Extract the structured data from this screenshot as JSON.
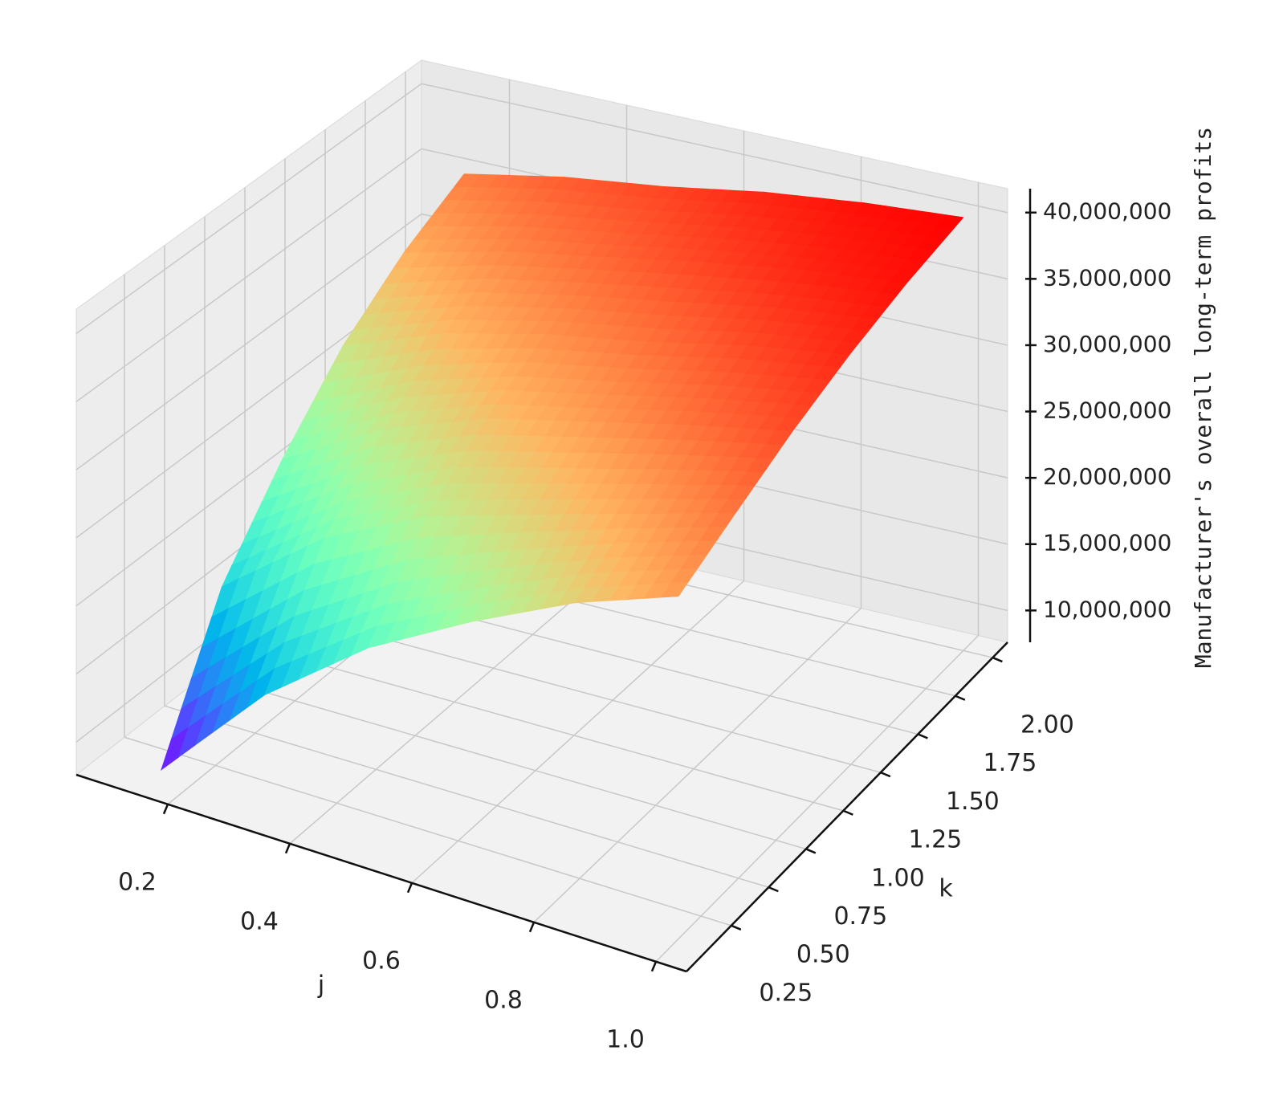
{
  "chart_data": {
    "type": "surface",
    "xlabel": "j",
    "ylabel": "k",
    "zlabel": "Manufacturer's overall long-term profits",
    "colormap": "rainbow",
    "grid": true,
    "x": [
      0.15,
      0.32,
      0.49,
      0.66,
      0.83,
      1.0
    ],
    "y": [
      0.1,
      0.48,
      0.86,
      1.24,
      1.62,
      2.0
    ],
    "z": [
      [
        8000000,
        18000000,
        24000000,
        29000000,
        32500000,
        35000000
      ],
      [
        16000000,
        24000000,
        28500000,
        32000000,
        34500000,
        36500000
      ],
      [
        22000000,
        28000000,
        31500000,
        34000000,
        36000000,
        37500000
      ],
      [
        26500000,
        30500000,
        33500000,
        35500000,
        37500000,
        38800000
      ],
      [
        30500000,
        33000000,
        35500000,
        37300000,
        38800000,
        39700000
      ],
      [
        33600000,
        35500000,
        37300000,
        38700000,
        39700000,
        40300000
      ]
    ],
    "xlim": [
      0.05,
      1.05
    ],
    "ylim": [
      -0.05,
      2.1
    ],
    "zlim": [
      7600000,
      41800000
    ],
    "xticks": [
      0.2,
      0.4,
      0.6,
      0.8,
      {
        "value": 1,
        "label": "1.0"
      }
    ],
    "yticks": [
      0.25,
      {
        "value": 0.5,
        "label": "0.50"
      },
      0.75,
      {
        "value": 1,
        "label": "1.00"
      },
      1.25,
      {
        "value": 1.5,
        "label": "1.50"
      },
      1.75,
      {
        "value": 2,
        "label": "2.00"
      }
    ],
    "zticks": [
      {
        "value": 10000000,
        "label": "10,000,000"
      },
      {
        "value": 15000000,
        "label": "15,000,000"
      },
      {
        "value": 20000000,
        "label": "20,000,000"
      },
      {
        "value": 25000000,
        "label": "25,000,000"
      },
      {
        "value": 30000000,
        "label": "30,000,000"
      },
      {
        "value": 35000000,
        "label": "35,000,000"
      },
      {
        "value": 40000000,
        "label": "40,000,000"
      }
    ]
  }
}
